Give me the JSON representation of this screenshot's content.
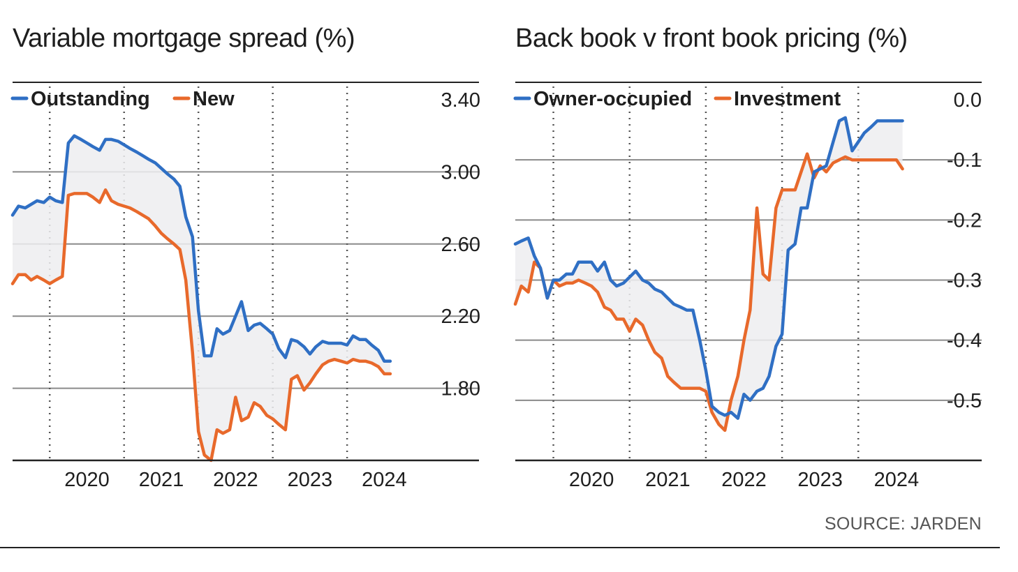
{
  "source": "SOURCE: JARDEN",
  "colors": {
    "blue": "#2f6fc4",
    "orange": "#e8692b",
    "fill": "#ededf0",
    "grid": "#888888"
  },
  "chart_data": [
    {
      "type": "line",
      "title": "Variable mortgage spread (%)",
      "xlabel": "",
      "ylabel": "",
      "x_tick_labels": [
        "2020",
        "2021",
        "2022",
        "2023",
        "2024"
      ],
      "x_ticks": [
        2020,
        2021,
        2022,
        2023,
        2024
      ],
      "y_ticks": [
        1.8,
        2.2,
        2.6,
        3.0,
        3.4
      ],
      "y_tick_labels": [
        "1.80",
        "2.20",
        "2.60",
        "3.00",
        "3.40"
      ],
      "xlim": [
        2019.0,
        2024.56
      ],
      "ylim": [
        1.4,
        3.4
      ],
      "legend_position": "top-left",
      "grid": true,
      "series": [
        {
          "name": "Outstanding",
          "color": "#2f6fc4",
          "x": [
            2019.0,
            2019.08,
            2019.17,
            2019.25,
            2019.33,
            2019.42,
            2019.5,
            2019.58,
            2019.67,
            2019.75,
            2019.83,
            2019.92,
            2020.0,
            2020.08,
            2020.17,
            2020.25,
            2020.33,
            2020.42,
            2020.5,
            2020.58,
            2020.67,
            2020.75,
            2020.83,
            2020.92,
            2021.0,
            2021.08,
            2021.17,
            2021.25,
            2021.33,
            2021.42,
            2021.5,
            2021.58,
            2021.67,
            2021.75,
            2021.83,
            2021.92,
            2022.0,
            2022.08,
            2022.17,
            2022.25,
            2022.33,
            2022.42,
            2022.5,
            2022.58,
            2022.67,
            2022.75,
            2022.83,
            2022.92,
            2023.0,
            2023.08,
            2023.17,
            2023.25,
            2023.33,
            2023.42,
            2023.5,
            2023.58,
            2023.67,
            2023.75,
            2023.83,
            2023.92,
            2024.0,
            2024.08
          ],
          "values": [
            2.76,
            2.81,
            2.8,
            2.82,
            2.84,
            2.83,
            2.86,
            2.84,
            2.83,
            3.16,
            3.2,
            3.18,
            3.16,
            3.14,
            3.12,
            3.18,
            3.18,
            3.17,
            3.15,
            3.13,
            3.11,
            3.09,
            3.07,
            3.05,
            3.02,
            2.99,
            2.96,
            2.92,
            2.75,
            2.64,
            2.23,
            1.98,
            1.98,
            2.13,
            2.1,
            2.12,
            2.2,
            2.28,
            2.12,
            2.15,
            2.16,
            2.13,
            2.1,
            2.02,
            1.97,
            2.07,
            2.06,
            2.03,
            1.99,
            2.03,
            2.06,
            2.05,
            2.05,
            2.05,
            2.04,
            2.09,
            2.07,
            2.07,
            2.04,
            2.01,
            1.95,
            1.95
          ]
        },
        {
          "name": "New",
          "color": "#e8692b",
          "x": [
            2019.0,
            2019.08,
            2019.17,
            2019.25,
            2019.33,
            2019.42,
            2019.5,
            2019.58,
            2019.67,
            2019.75,
            2019.83,
            2019.92,
            2020.0,
            2020.08,
            2020.17,
            2020.25,
            2020.33,
            2020.42,
            2020.5,
            2020.58,
            2020.67,
            2020.75,
            2020.83,
            2020.92,
            2021.0,
            2021.08,
            2021.17,
            2021.25,
            2021.33,
            2021.42,
            2021.5,
            2021.58,
            2021.67,
            2021.75,
            2021.83,
            2021.92,
            2022.0,
            2022.08,
            2022.17,
            2022.25,
            2022.33,
            2022.42,
            2022.5,
            2022.58,
            2022.67,
            2022.75,
            2022.83,
            2022.92,
            2023.0,
            2023.08,
            2023.17,
            2023.25,
            2023.33,
            2023.42,
            2023.5,
            2023.58,
            2023.67,
            2023.75,
            2023.83,
            2023.92,
            2024.0,
            2024.08
          ],
          "values": [
            2.38,
            2.43,
            2.43,
            2.4,
            2.42,
            2.4,
            2.38,
            2.4,
            2.42,
            2.87,
            2.88,
            2.88,
            2.88,
            2.86,
            2.83,
            2.9,
            2.84,
            2.82,
            2.81,
            2.8,
            2.78,
            2.76,
            2.74,
            2.7,
            2.66,
            2.63,
            2.6,
            2.57,
            2.4,
            2.0,
            1.56,
            1.43,
            1.4,
            1.57,
            1.55,
            1.57,
            1.75,
            1.62,
            1.64,
            1.72,
            1.7,
            1.65,
            1.63,
            1.6,
            1.57,
            1.85,
            1.87,
            1.79,
            1.83,
            1.88,
            1.93,
            1.95,
            1.96,
            1.95,
            1.94,
            1.96,
            1.95,
            1.95,
            1.94,
            1.92,
            1.88,
            1.88
          ]
        }
      ]
    },
    {
      "type": "line",
      "title": "Back book v front book pricing (%)",
      "xlabel": "",
      "ylabel": "",
      "x_tick_labels": [
        "2020",
        "2021",
        "2022",
        "2023",
        "2024"
      ],
      "x_ticks": [
        2020,
        2021,
        2022,
        2023,
        2024
      ],
      "y_ticks": [
        -0.5,
        -0.4,
        -0.3,
        -0.2,
        -0.1,
        0.0
      ],
      "y_tick_labels": [
        "-0.5",
        "-0.4",
        "-0.3",
        "-0.2",
        "-0.1",
        "0.0"
      ],
      "xlim": [
        2019.0,
        2024.56
      ],
      "ylim": [
        -0.6,
        0.0
      ],
      "legend_position": "top-left",
      "grid": true,
      "series": [
        {
          "name": "Owner-occupied",
          "color": "#2f6fc4",
          "x": [
            2019.0,
            2019.08,
            2019.17,
            2019.25,
            2019.33,
            2019.42,
            2019.5,
            2019.58,
            2019.67,
            2019.75,
            2019.83,
            2019.92,
            2020.0,
            2020.08,
            2020.17,
            2020.25,
            2020.33,
            2020.42,
            2020.5,
            2020.58,
            2020.67,
            2020.75,
            2020.83,
            2020.92,
            2021.0,
            2021.08,
            2021.17,
            2021.25,
            2021.33,
            2021.42,
            2021.5,
            2021.58,
            2021.67,
            2021.75,
            2021.83,
            2021.92,
            2022.0,
            2022.08,
            2022.17,
            2022.25,
            2022.33,
            2022.42,
            2022.5,
            2022.58,
            2022.67,
            2022.75,
            2022.83,
            2022.92,
            2023.0,
            2023.08,
            2023.17,
            2023.25,
            2023.33,
            2023.42,
            2023.5,
            2023.58,
            2023.67,
            2023.75,
            2023.83,
            2023.92,
            2024.0,
            2024.08
          ],
          "values": [
            -0.24,
            -0.235,
            -0.23,
            -0.26,
            -0.28,
            -0.33,
            -0.3,
            -0.3,
            -0.29,
            -0.29,
            -0.27,
            -0.27,
            -0.27,
            -0.285,
            -0.27,
            -0.3,
            -0.31,
            -0.305,
            -0.295,
            -0.285,
            -0.3,
            -0.305,
            -0.315,
            -0.32,
            -0.33,
            -0.34,
            -0.345,
            -0.35,
            -0.35,
            -0.4,
            -0.45,
            -0.51,
            -0.52,
            -0.525,
            -0.52,
            -0.53,
            -0.49,
            -0.5,
            -0.485,
            -0.48,
            -0.46,
            -0.41,
            -0.39,
            -0.25,
            -0.24,
            -0.18,
            -0.18,
            -0.12,
            -0.115,
            -0.11,
            -0.07,
            -0.035,
            -0.03,
            -0.085,
            -0.07,
            -0.055,
            -0.045,
            -0.035,
            -0.035,
            -0.035,
            -0.035,
            -0.035
          ]
        },
        {
          "name": "Investment",
          "color": "#e8692b",
          "x": [
            2019.0,
            2019.08,
            2019.17,
            2019.25,
            2019.33,
            2019.42,
            2019.5,
            2019.58,
            2019.67,
            2019.75,
            2019.83,
            2019.92,
            2020.0,
            2020.08,
            2020.17,
            2020.25,
            2020.33,
            2020.42,
            2020.5,
            2020.58,
            2020.67,
            2020.75,
            2020.83,
            2020.92,
            2021.0,
            2021.08,
            2021.17,
            2021.25,
            2021.33,
            2021.42,
            2021.5,
            2021.58,
            2021.67,
            2021.75,
            2021.83,
            2021.92,
            2022.0,
            2022.08,
            2022.17,
            2022.25,
            2022.33,
            2022.42,
            2022.5,
            2022.58,
            2022.67,
            2022.75,
            2022.83,
            2022.92,
            2023.0,
            2023.08,
            2023.17,
            2023.25,
            2023.33,
            2023.42,
            2023.5,
            2023.58,
            2023.67,
            2023.75,
            2023.83,
            2023.92,
            2024.0,
            2024.08
          ],
          "values": [
            -0.34,
            -0.31,
            -0.32,
            -0.27,
            -0.28,
            -0.33,
            -0.3,
            -0.31,
            -0.305,
            -0.305,
            -0.3,
            -0.305,
            -0.31,
            -0.32,
            -0.345,
            -0.35,
            -0.365,
            -0.365,
            -0.385,
            -0.365,
            -0.375,
            -0.4,
            -0.42,
            -0.43,
            -0.46,
            -0.47,
            -0.48,
            -0.48,
            -0.48,
            -0.48,
            -0.485,
            -0.52,
            -0.54,
            -0.55,
            -0.5,
            -0.46,
            -0.4,
            -0.35,
            -0.18,
            -0.29,
            -0.3,
            -0.18,
            -0.15,
            -0.15,
            -0.15,
            -0.12,
            -0.09,
            -0.13,
            -0.11,
            -0.12,
            -0.105,
            -0.1,
            -0.095,
            -0.1,
            -0.1,
            -0.1,
            -0.1,
            -0.1,
            -0.1,
            -0.1,
            -0.1,
            -0.115
          ]
        }
      ]
    }
  ]
}
